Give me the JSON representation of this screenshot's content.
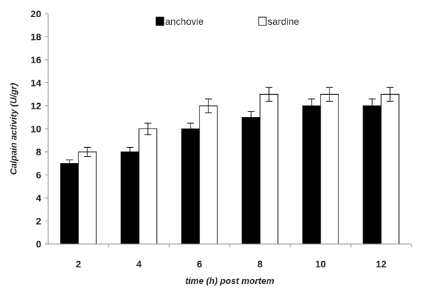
{
  "chart_data": {
    "type": "bar",
    "categories": [
      "2",
      "4",
      "6",
      "8",
      "10",
      "12"
    ],
    "series": [
      {
        "name": "anchovie",
        "values": [
          7,
          8,
          10,
          11,
          12,
          12
        ],
        "errors": [
          0.3,
          0.4,
          0.5,
          0.5,
          0.6,
          0.6
        ],
        "color": "#000000"
      },
      {
        "name": "sardine",
        "values": [
          8,
          10,
          12,
          13,
          13,
          13
        ],
        "errors": [
          0.4,
          0.5,
          0.6,
          0.6,
          0.6,
          0.6
        ],
        "color": "#ffffff"
      }
    ],
    "xlabel": "time (h) post mortem",
    "ylabel": "Calpain activity (U/gr)",
    "ylim": [
      0,
      20
    ],
    "yticks": [
      "0",
      "2",
      "4",
      "6",
      "8",
      "10",
      "12",
      "14",
      "16",
      "18",
      "20"
    ],
    "grid": false,
    "legend_position": "top-center"
  }
}
